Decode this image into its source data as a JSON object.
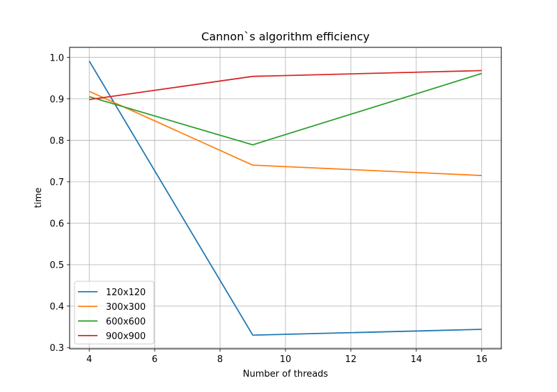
{
  "chart_data": {
    "type": "line",
    "title": "Cannon`s algorithm efficiency",
    "xlabel": "Number of threads",
    "ylabel": "time",
    "x": [
      4,
      9,
      16
    ],
    "xlim": [
      3.4,
      16.6
    ],
    "ylim": [
      0.297,
      1.024
    ],
    "xticks": [
      4,
      6,
      8,
      10,
      12,
      14,
      16
    ],
    "yticks": [
      0.3,
      0.4,
      0.5,
      0.6,
      0.7,
      0.8,
      0.9,
      1.0
    ],
    "ytick_labels": [
      "0.3",
      "0.4",
      "0.5",
      "0.6",
      "0.7",
      "0.8",
      "0.9",
      "1.0"
    ],
    "grid": true,
    "legend_position": "lower-left",
    "series": [
      {
        "name": "120x120",
        "color": "#1f77b4",
        "values": [
          0.991,
          0.33,
          0.344
        ]
      },
      {
        "name": "300x300",
        "color": "#ff7f0e",
        "values": [
          0.918,
          0.74,
          0.715
        ]
      },
      {
        "name": "600x600",
        "color": "#2ca02c",
        "values": [
          0.905,
          0.789,
          0.961
        ]
      },
      {
        "name": "900x900",
        "color": "#d62728",
        "values": [
          0.898,
          0.954,
          0.968
        ]
      }
    ]
  }
}
